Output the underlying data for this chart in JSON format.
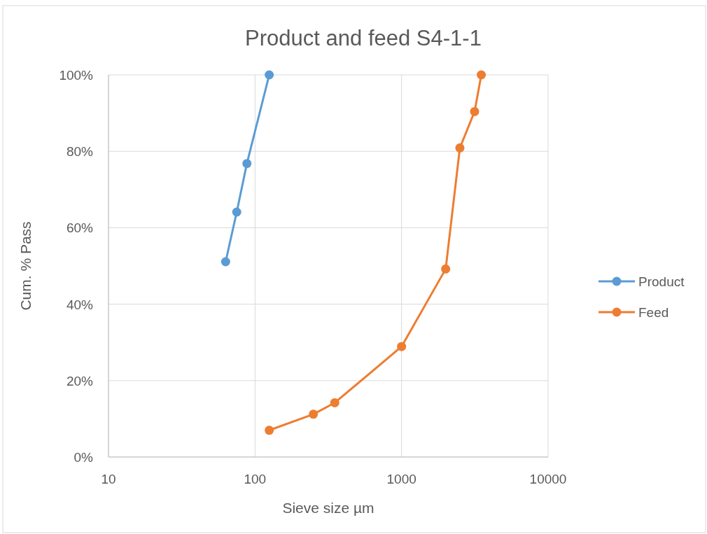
{
  "chart_data": {
    "type": "line",
    "title": "Product and feed S4-1-1",
    "xlabel": "Sieve size µm",
    "ylabel": "Cum. % Pass",
    "log": "x",
    "xlim": [
      10,
      10000
    ],
    "xticks": [
      10,
      100,
      1000,
      10000
    ],
    "ylim": [
      0,
      100
    ],
    "yticks": [
      {
        "value": 0,
        "label": "0%"
      },
      {
        "value": 20,
        "label": "20%"
      },
      {
        "value": 40,
        "label": "40%"
      },
      {
        "value": 60,
        "label": "60%"
      },
      {
        "value": 80,
        "label": "80%"
      },
      {
        "value": 100,
        "label": "100%"
      }
    ],
    "grid": true,
    "legend": "right",
    "marker": "circle",
    "line_style": "solid",
    "series": [
      {
        "name": "Product",
        "color": "#5b9bd5",
        "x": [
          63,
          75,
          88,
          125
        ],
        "values": [
          51.1,
          64.1,
          76.8,
          100
        ]
      },
      {
        "name": "Feed",
        "color": "#ed7d31",
        "x": [
          125,
          250,
          350,
          1000,
          2000,
          2500,
          3150,
          3500
        ],
        "values": [
          7,
          11.2,
          14.2,
          28.9,
          49.2,
          80.9,
          90.4,
          100
        ]
      }
    ]
  }
}
